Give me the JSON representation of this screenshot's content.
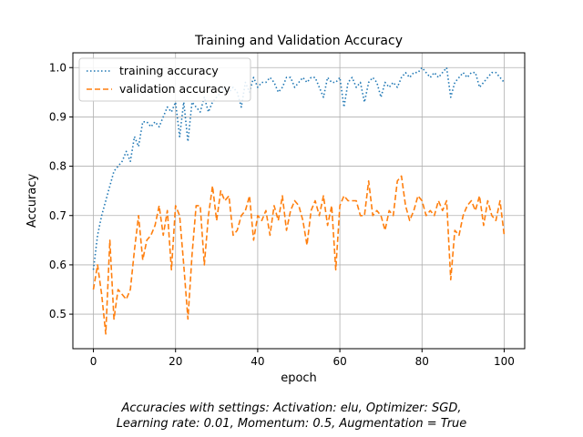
{
  "chart_data": {
    "type": "line",
    "title": "Training and Validation Accuracy",
    "xlabel": "epoch",
    "ylabel": "Accuracy",
    "xlim": [
      -5,
      105
    ],
    "ylim": [
      0.43,
      1.03
    ],
    "xticks": [
      0,
      20,
      40,
      60,
      80,
      100
    ],
    "yticks": [
      0.5,
      0.6,
      0.7,
      0.8,
      0.9,
      1.0
    ],
    "grid": true,
    "legend": "top-left",
    "series": [
      {
        "name": "training accuracy",
        "color": "#1f77b4",
        "style": "dotted",
        "x": [
          0,
          1,
          2,
          3,
          4,
          5,
          6,
          7,
          8,
          9,
          10,
          11,
          12,
          13,
          14,
          15,
          16,
          17,
          18,
          19,
          20,
          21,
          22,
          23,
          24,
          25,
          26,
          27,
          28,
          29,
          30,
          31,
          32,
          33,
          34,
          35,
          36,
          37,
          38,
          39,
          40,
          41,
          42,
          43,
          44,
          45,
          46,
          47,
          48,
          49,
          50,
          51,
          52,
          53,
          54,
          55,
          56,
          57,
          58,
          59,
          60,
          61,
          62,
          63,
          64,
          65,
          66,
          67,
          68,
          69,
          70,
          71,
          72,
          73,
          74,
          75,
          76,
          77,
          78,
          79,
          80,
          81,
          82,
          83,
          84,
          85,
          86,
          87,
          88,
          89,
          90,
          91,
          92,
          93,
          94,
          95,
          96,
          97,
          98,
          99,
          100
        ],
        "values": [
          0.59,
          0.66,
          0.7,
          0.73,
          0.76,
          0.79,
          0.8,
          0.81,
          0.83,
          0.81,
          0.86,
          0.84,
          0.89,
          0.89,
          0.88,
          0.89,
          0.88,
          0.9,
          0.92,
          0.91,
          0.93,
          0.86,
          0.93,
          0.85,
          0.93,
          0.92,
          0.91,
          0.94,
          0.91,
          0.93,
          0.94,
          0.95,
          0.96,
          0.95,
          0.96,
          0.95,
          0.92,
          0.97,
          0.95,
          0.98,
          0.96,
          0.97,
          0.97,
          0.98,
          0.97,
          0.95,
          0.96,
          0.98,
          0.98,
          0.96,
          0.97,
          0.98,
          0.97,
          0.98,
          0.98,
          0.96,
          0.94,
          0.98,
          0.97,
          0.97,
          0.98,
          0.92,
          0.97,
          0.98,
          0.96,
          0.97,
          0.93,
          0.97,
          0.98,
          0.97,
          0.94,
          0.97,
          0.96,
          0.97,
          0.96,
          0.98,
          0.99,
          0.98,
          0.99,
          0.99,
          1.0,
          0.99,
          0.98,
          0.99,
          0.98,
          0.99,
          1.0,
          0.94,
          0.97,
          0.98,
          0.99,
          0.98,
          0.99,
          0.99,
          0.96,
          0.97,
          0.98,
          0.99,
          0.99,
          0.98,
          0.97
        ]
      },
      {
        "name": "validation accuracy",
        "color": "#ff7f0e",
        "style": "dashed",
        "x": [
          0,
          1,
          2,
          3,
          4,
          5,
          6,
          7,
          8,
          9,
          10,
          11,
          12,
          13,
          14,
          15,
          16,
          17,
          18,
          19,
          20,
          21,
          22,
          23,
          24,
          25,
          26,
          27,
          28,
          29,
          30,
          31,
          32,
          33,
          34,
          35,
          36,
          37,
          38,
          39,
          40,
          41,
          42,
          43,
          44,
          45,
          46,
          47,
          48,
          49,
          50,
          51,
          52,
          53,
          54,
          55,
          56,
          57,
          58,
          59,
          60,
          61,
          62,
          63,
          64,
          65,
          66,
          67,
          68,
          69,
          70,
          71,
          72,
          73,
          74,
          75,
          76,
          77,
          78,
          79,
          80,
          81,
          82,
          83,
          84,
          85,
          86,
          87,
          88,
          89,
          90,
          91,
          92,
          93,
          94,
          95,
          96,
          97,
          98,
          99,
          100
        ],
        "values": [
          0.55,
          0.6,
          0.54,
          0.46,
          0.65,
          0.49,
          0.55,
          0.54,
          0.53,
          0.55,
          0.63,
          0.7,
          0.61,
          0.65,
          0.66,
          0.68,
          0.72,
          0.66,
          0.71,
          0.59,
          0.72,
          0.7,
          0.6,
          0.49,
          0.62,
          0.72,
          0.72,
          0.6,
          0.7,
          0.76,
          0.69,
          0.75,
          0.73,
          0.74,
          0.66,
          0.67,
          0.7,
          0.71,
          0.74,
          0.65,
          0.7,
          0.69,
          0.71,
          0.66,
          0.72,
          0.69,
          0.74,
          0.67,
          0.71,
          0.73,
          0.72,
          0.69,
          0.64,
          0.71,
          0.73,
          0.7,
          0.74,
          0.68,
          0.72,
          0.59,
          0.72,
          0.74,
          0.73,
          0.73,
          0.73,
          0.7,
          0.7,
          0.77,
          0.7,
          0.71,
          0.7,
          0.67,
          0.71,
          0.7,
          0.77,
          0.78,
          0.72,
          0.69,
          0.71,
          0.74,
          0.73,
          0.7,
          0.71,
          0.7,
          0.73,
          0.71,
          0.73,
          0.57,
          0.67,
          0.66,
          0.7,
          0.72,
          0.73,
          0.71,
          0.74,
          0.68,
          0.73,
          0.7,
          0.69,
          0.73,
          0.66
        ]
      }
    ]
  },
  "caption": {
    "line1": "Accuracies with settings: Activation: elu, Optimizer: SGD,",
    "line2": "Learning rate: 0.01, Momentum: 0.5, Augmentation = True"
  }
}
